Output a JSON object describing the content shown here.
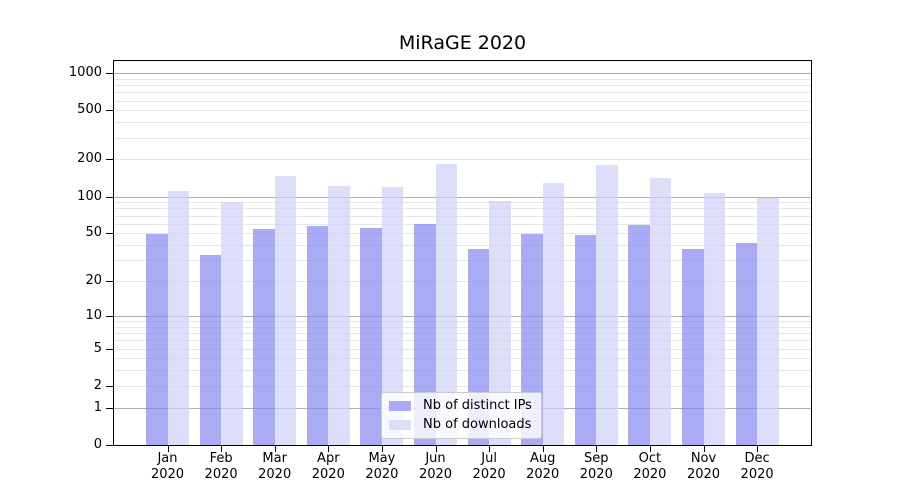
{
  "title": "MiRaGE 2020",
  "legend": {
    "items": [
      {
        "label": "Nb of distinct IPs"
      },
      {
        "label": "Nb of downloads"
      }
    ]
  },
  "y_axis": {
    "tick_labels": [
      "0",
      "1",
      "2",
      "5",
      "10",
      "20",
      "50",
      "100",
      "200",
      "500",
      "1000"
    ]
  },
  "x_axis": {
    "tick_labels": [
      "Jan 2020",
      "Feb 2020",
      "Mar 2020",
      "Apr 2020",
      "May 2020",
      "Jun 2020",
      "Jul 2020",
      "Aug 2020",
      "Sep 2020",
      "Oct 2020",
      "Nov 2020",
      "Dec 2020"
    ]
  },
  "colors": {
    "bar_ips": "#a9abf4",
    "bar_downloads": "#dddefa",
    "bar_ips_rgba": "rgba(136,138,240,0.72)",
    "bar_downloads_rgba": "rgba(208,209,248,0.72)",
    "grid_major": "#b0b0b0",
    "grid_minor": "#e7e7e7",
    "spine": "#000000"
  },
  "chart_data": {
    "type": "bar",
    "title": "MiRaGE 2020",
    "categories": [
      "Jan 2020",
      "Feb 2020",
      "Mar 2020",
      "Apr 2020",
      "May 2020",
      "Jun 2020",
      "Jul 2020",
      "Aug 2020",
      "Sep 2020",
      "Oct 2020",
      "Nov 2020",
      "Dec 2020"
    ],
    "series": [
      {
        "name": "Nb of distinct IPs",
        "color": "#a9abf4",
        "values": [
          49,
          33,
          54,
          57,
          55,
          60,
          37,
          49,
          48,
          59,
          37,
          42
        ]
      },
      {
        "name": "Nb of downloads",
        "color": "#dddefa",
        "values": [
          110,
          90,
          148,
          121,
          120,
          184,
          92,
          130,
          181,
          141,
          107,
          98
        ]
      }
    ],
    "xlabel": "",
    "ylabel": "",
    "yscale": "symlog",
    "yticks": [
      0,
      1,
      2,
      5,
      10,
      20,
      50,
      100,
      200,
      500,
      1000
    ],
    "ylim": [
      0,
      1250
    ],
    "grid": "horizontal major (powers of 10, gray) + log minor gridlines (light)",
    "legend_position": "inside, lower center-left"
  }
}
